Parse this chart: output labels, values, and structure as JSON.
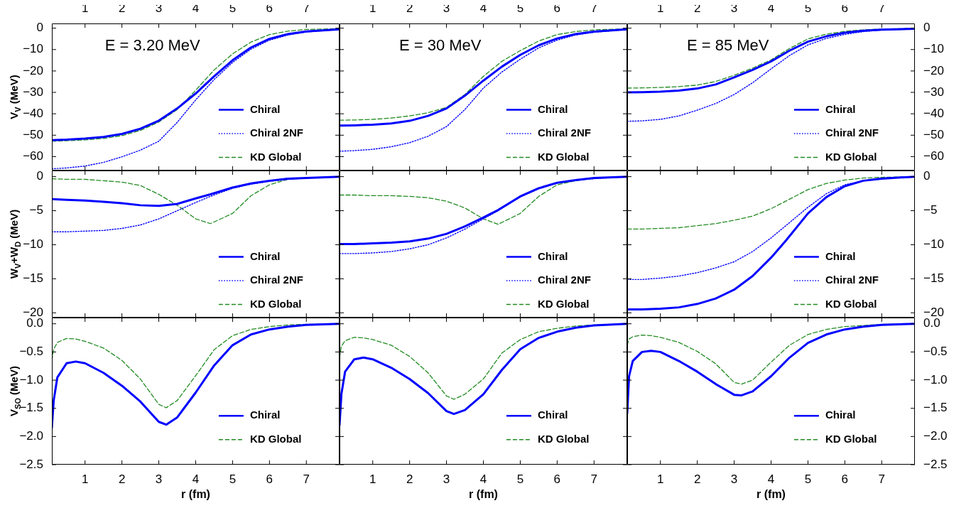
{
  "chart_data": [
    {
      "type": "line",
      "title": "E = 3.20 MeV",
      "ylabel": "V$_{V}$ (MeV)",
      "x": [
        0.1,
        0.5,
        1,
        1.5,
        2,
        2.5,
        3,
        3.5,
        4,
        4.5,
        5,
        5.5,
        6,
        6.5,
        7,
        7.9
      ],
      "xlim": [
        0.1,
        7.9
      ],
      "xticks": [
        1,
        2,
        3,
        4,
        5,
        6,
        7
      ],
      "x2lim": [
        0.1,
        7.9
      ],
      "x2ticks": [
        1,
        2,
        3,
        4,
        5,
        6,
        7
      ],
      "ylim": [
        -66.5,
        2.2
      ],
      "yticks": [
        -60,
        -50,
        -40,
        -30,
        -20,
        -10,
        0
      ],
      "tick_labels": "y",
      "legend": "bottom right",
      "marker": "none",
      "series": [
        {
          "name": "Chiral",
          "color": "#0000ff",
          "line_style": "solid",
          "values": [
            -52.3,
            -52.1,
            -51.6,
            -50.8,
            -49.4,
            -47,
            -43.2,
            -37.5,
            -30.5,
            -22.5,
            -15,
            -9,
            -5,
            -2.8,
            -1.5,
            -0.5
          ]
        },
        {
          "name": "Chiral 2NF",
          "color": "#0000ff",
          "line_style": "dotted",
          "values": [
            -65.7,
            -65.3,
            -64.4,
            -62.7,
            -60.1,
            -57,
            -52.8,
            -44,
            -33.5,
            -24,
            -16,
            -9.8,
            -5.6,
            -3.2,
            -1.8,
            -0.6
          ]
        },
        {
          "name": "KD Global",
          "color": "#228b22",
          "line_style": "dashed",
          "values": [
            -52.8,
            -52.6,
            -52.2,
            -51.5,
            -50.2,
            -47.8,
            -43.8,
            -38,
            -29,
            -19.5,
            -12,
            -6.5,
            -3,
            -1.4,
            -0.6,
            -0.2
          ]
        }
      ]
    },
    {
      "type": "line",
      "title": "E = 30 MeV",
      "x": [
        0.1,
        0.5,
        1,
        1.5,
        2,
        2.5,
        3,
        3.5,
        4,
        4.5,
        5,
        5.5,
        6,
        6.5,
        7,
        7.9
      ],
      "xlim": [
        0.1,
        7.9
      ],
      "xticks": [
        1,
        2,
        3,
        4,
        5,
        6,
        7
      ],
      "x2lim": [
        0.1,
        7.9
      ],
      "x2ticks": [
        1,
        2,
        3,
        4,
        5,
        6,
        7
      ],
      "ylim": [
        -66.5,
        2.2
      ],
      "yticks": [
        -60,
        -50,
        -40,
        -30,
        -20,
        -10,
        0
      ],
      "tick_labels": false,
      "legend": "bottom right",
      "marker": "none",
      "series": [
        {
          "name": "Chiral",
          "color": "#0000ff",
          "line_style": "solid",
          "values": [
            -45.5,
            -45.4,
            -45.1,
            -44.5,
            -43.3,
            -41,
            -37.5,
            -31.5,
            -24.5,
            -18,
            -12.5,
            -8,
            -4.8,
            -2.8,
            -1.6,
            -0.5
          ]
        },
        {
          "name": "Chiral 2NF",
          "color": "#0000ff",
          "line_style": "dotted",
          "values": [
            -57.5,
            -57.2,
            -56.6,
            -55.4,
            -53.5,
            -50.5,
            -46,
            -38,
            -28,
            -20.5,
            -14.5,
            -9.2,
            -5.6,
            -3.2,
            -1.9,
            -0.6
          ]
        },
        {
          "name": "KD Global",
          "color": "#228b22",
          "line_style": "dashed",
          "values": [
            -43,
            -42.9,
            -42.6,
            -42,
            -41,
            -39.5,
            -37,
            -31,
            -22.5,
            -15.5,
            -10.5,
            -6,
            -3,
            -1.6,
            -0.8,
            -0.3
          ]
        }
      ]
    },
    {
      "type": "line",
      "title": "E = 85 MeV",
      "x": [
        0.1,
        0.5,
        1,
        1.5,
        2,
        2.5,
        3,
        3.5,
        4,
        4.5,
        5,
        5.5,
        6,
        6.5,
        7,
        7.9
      ],
      "xlim": [
        0.1,
        7.9
      ],
      "xticks": [
        1,
        2,
        3,
        4,
        5,
        6,
        7
      ],
      "x2lim": [
        0.1,
        7.9
      ],
      "x2ticks": [
        1,
        2,
        3,
        4,
        5,
        6,
        7
      ],
      "ylim": [
        -66.5,
        2.2
      ],
      "yticks": [
        -60,
        -50,
        -40,
        -30,
        -20,
        -10,
        0
      ],
      "tick_labels": "y",
      "legend": "bottom right",
      "marker": "none",
      "series": [
        {
          "name": "Chiral",
          "color": "#0000ff",
          "line_style": "solid",
          "values": [
            -30,
            -29.9,
            -29.7,
            -29.2,
            -28.2,
            -26.3,
            -23,
            -19.5,
            -15.5,
            -10.5,
            -6.3,
            -3.8,
            -2.1,
            -1.2,
            -0.7,
            -0.3
          ]
        },
        {
          "name": "Chiral 2NF",
          "color": "#0000ff",
          "line_style": "dotted",
          "values": [
            -43.5,
            -43.3,
            -42.6,
            -41,
            -38.3,
            -35.2,
            -31,
            -25.5,
            -19,
            -12.8,
            -7.8,
            -4.8,
            -2.9,
            -1.6,
            -0.9,
            -0.3
          ]
        },
        {
          "name": "KD Global",
          "color": "#228b22",
          "line_style": "dashed",
          "values": [
            -28,
            -27.9,
            -27.7,
            -27.3,
            -26.6,
            -24.9,
            -22,
            -18.7,
            -14.8,
            -9.5,
            -5,
            -2.8,
            -1.5,
            -0.8,
            -0.4,
            -0.1
          ]
        }
      ]
    },
    {
      "type": "line",
      "ylabel": "W$_{V}$+W$_{D}$ (MeV)",
      "x": [
        0.1,
        0.5,
        1,
        1.5,
        2,
        2.5,
        3,
        3.5,
        4,
        4.4,
        5,
        5.5,
        6,
        6.5,
        7,
        7.9
      ],
      "xlim": [
        0.1,
        7.9
      ],
      "xticks": [
        1,
        2,
        3,
        4,
        5,
        6,
        7
      ],
      "ylim": [
        -20.7,
        0.9
      ],
      "yticks": [
        -20,
        -15,
        -10,
        -5,
        0
      ],
      "tick_labels": "y",
      "legend": "bottom right",
      "marker": "none",
      "series": [
        {
          "name": "Chiral",
          "color": "#0000ff",
          "line_style": "solid",
          "values": [
            -3.3,
            -3.4,
            -3.5,
            -3.7,
            -3.9,
            -4.2,
            -4.3,
            -4,
            -3.2,
            -2.6,
            -1.6,
            -1,
            -0.6,
            -0.3,
            -0.2,
            0
          ]
        },
        {
          "name": "Chiral 2NF",
          "color": "#0000ff",
          "line_style": "dotted",
          "values": [
            -8.1,
            -8.1,
            -8,
            -7.9,
            -7.6,
            -7.1,
            -6.2,
            -5,
            -3.8,
            -2.9,
            -1.7,
            -1.1,
            -0.7,
            -0.4,
            -0.2,
            0
          ]
        },
        {
          "name": "KD Global",
          "color": "#228b22",
          "line_style": "dashed",
          "values": [
            -0.3,
            -0.4,
            -0.4,
            -0.6,
            -0.8,
            -1.3,
            -2.6,
            -4.2,
            -6.2,
            -6.9,
            -5.4,
            -2.8,
            -1.2,
            -0.4,
            -0.2,
            0
          ]
        }
      ]
    },
    {
      "type": "line",
      "x": [
        0.1,
        0.5,
        1,
        1.5,
        2,
        2.5,
        3,
        3.5,
        4,
        4.4,
        5,
        5.5,
        6,
        6.5,
        7,
        7.9
      ],
      "xlim": [
        0.1,
        7.9
      ],
      "xticks": [
        1,
        2,
        3,
        4,
        5,
        6,
        7
      ],
      "ylim": [
        -20.7,
        0.9
      ],
      "yticks": [
        -20,
        -15,
        -10,
        -5,
        0
      ],
      "tick_labels": false,
      "legend": "bottom right",
      "marker": "none",
      "series": [
        {
          "name": "Chiral",
          "color": "#0000ff",
          "line_style": "solid",
          "values": [
            -9.9,
            -9.9,
            -9.8,
            -9.7,
            -9.5,
            -9.1,
            -8.4,
            -7.3,
            -6,
            -4.9,
            -2.9,
            -1.7,
            -0.9,
            -0.5,
            -0.2,
            0
          ]
        },
        {
          "name": "Chiral 2NF",
          "color": "#0000ff",
          "line_style": "dotted",
          "values": [
            -11.3,
            -11.3,
            -11.2,
            -11,
            -10.6,
            -10,
            -9,
            -7.7,
            -6.2,
            -5,
            -3,
            -1.8,
            -0.9,
            -0.5,
            -0.3,
            0
          ]
        },
        {
          "name": "KD Global",
          "color": "#228b22",
          "line_style": "dashed",
          "values": [
            -2.7,
            -2.7,
            -2.8,
            -2.8,
            -2.9,
            -3.1,
            -3.6,
            -4.6,
            -6.2,
            -7,
            -5.4,
            -2.9,
            -1.2,
            -0.6,
            -0.2,
            0
          ]
        }
      ]
    },
    {
      "type": "line",
      "x": [
        0.1,
        0.5,
        1,
        1.5,
        2,
        2.5,
        3,
        3.5,
        4,
        4.4,
        5,
        5.5,
        6,
        6.5,
        7,
        7.9
      ],
      "xlim": [
        0.1,
        7.9
      ],
      "xticks": [
        1,
        2,
        3,
        4,
        5,
        6,
        7
      ],
      "ylim": [
        -20.7,
        0.9
      ],
      "yticks": [
        -20,
        -15,
        -10,
        -5,
        0
      ],
      "tick_labels": "y",
      "legend": "bottom right",
      "marker": "none",
      "series": [
        {
          "name": "Chiral",
          "color": "#0000ff",
          "line_style": "solid",
          "values": [
            -19.5,
            -19.5,
            -19.4,
            -19.2,
            -18.7,
            -17.9,
            -16.6,
            -14.6,
            -11.9,
            -9.4,
            -5.4,
            -3,
            -1.4,
            -0.6,
            -0.3,
            0
          ]
        },
        {
          "name": "Chiral 2NF",
          "color": "#0000ff",
          "line_style": "dotted",
          "values": [
            -15.1,
            -15.1,
            -14.9,
            -14.6,
            -14.1,
            -13.4,
            -12.5,
            -11,
            -9,
            -7.2,
            -4.5,
            -2.5,
            -1.2,
            -0.6,
            -0.2,
            0
          ]
        },
        {
          "name": "KD Global",
          "color": "#228b22",
          "line_style": "dashed",
          "values": [
            -7.7,
            -7.7,
            -7.6,
            -7.5,
            -7.2,
            -6.9,
            -6.4,
            -5.8,
            -4.7,
            -3.6,
            -1.9,
            -1,
            -0.5,
            -0.2,
            -0.1,
            0
          ]
        }
      ]
    },
    {
      "type": "line",
      "ylabel": "V$_{SO}$ (MeV)",
      "xlabel": "r (fm)",
      "x": [
        0.1,
        0.15,
        0.25,
        0.5,
        0.75,
        1,
        1.5,
        2,
        2.5,
        3,
        3.2,
        3.5,
        4,
        4.5,
        5,
        5.5,
        6,
        6.5,
        7,
        7.9
      ],
      "xlim": [
        0.1,
        7.9
      ],
      "xticks": [
        1,
        2,
        3,
        4,
        5,
        6,
        7
      ],
      "ylim": [
        -2.5,
        0.11
      ],
      "yticks": [
        -2.5,
        {
          "value": -2,
          "label": "−2.0"
        },
        -1.5,
        {
          "value": -1,
          "label": "−1.0"
        },
        -0.5,
        {
          "value": 0,
          "label": "0.0"
        }
      ],
      "legend": "bottom right",
      "marker": "none",
      "series": [
        {
          "name": "Chiral",
          "color": "#0000ff",
          "line_style": "solid",
          "values": [
            -1.85,
            -1.36,
            -0.95,
            -0.7,
            -0.67,
            -0.7,
            -0.87,
            -1.1,
            -1.38,
            -1.74,
            -1.79,
            -1.66,
            -1.22,
            -0.74,
            -0.38,
            -0.19,
            -0.1,
            -0.05,
            -0.02,
            0
          ]
        },
        {
          "name": "KD Global",
          "color": "#228b22",
          "line_style": "dashed",
          "values": [
            -0.65,
            -0.45,
            -0.33,
            -0.26,
            -0.27,
            -0.31,
            -0.43,
            -0.65,
            -0.98,
            -1.43,
            -1.49,
            -1.36,
            -0.92,
            -0.46,
            -0.21,
            -0.1,
            -0.05,
            -0.02,
            -0.01,
            0
          ]
        }
      ]
    },
    {
      "type": "line",
      "xlabel": "r (fm)",
      "x": [
        0.1,
        0.15,
        0.25,
        0.5,
        0.75,
        1,
        1.5,
        2,
        2.5,
        3,
        3.2,
        3.5,
        4,
        4.5,
        5,
        5.5,
        6,
        6.5,
        7,
        7.9
      ],
      "xlim": [
        0.1,
        7.9
      ],
      "xticks": [
        1,
        2,
        3,
        4,
        5,
        6,
        7
      ],
      "ylim": [
        -2.5,
        0.11
      ],
      "yticks": [
        -2.5,
        -2,
        -1.5,
        -1,
        -0.5,
        0
      ],
      "tick_labels": "x",
      "legend": "bottom right",
      "marker": "none",
      "series": [
        {
          "name": "Chiral",
          "color": "#0000ff",
          "line_style": "solid",
          "values": [
            -1.8,
            -1.25,
            -0.85,
            -0.63,
            -0.6,
            -0.63,
            -0.78,
            -0.98,
            -1.23,
            -1.55,
            -1.6,
            -1.53,
            -1.25,
            -0.82,
            -0.45,
            -0.25,
            -0.14,
            -0.07,
            -0.03,
            0
          ]
        },
        {
          "name": "KD Global",
          "color": "#228b22",
          "line_style": "dashed",
          "values": [
            -0.6,
            -0.4,
            -0.3,
            -0.24,
            -0.25,
            -0.28,
            -0.38,
            -0.58,
            -0.87,
            -1.28,
            -1.34,
            -1.25,
            -0.98,
            -0.52,
            -0.28,
            -0.14,
            -0.08,
            -0.04,
            -0.02,
            0
          ]
        }
      ]
    },
    {
      "type": "line",
      "xlabel": "r (fm)",
      "x": [
        0.1,
        0.15,
        0.25,
        0.5,
        0.75,
        1,
        1.5,
        2,
        2.5,
        3,
        3.2,
        3.5,
        4,
        4.5,
        5,
        5.5,
        6,
        6.5,
        7,
        7.9
      ],
      "xlim": [
        0.1,
        7.9
      ],
      "xticks": [
        1,
        2,
        3,
        4,
        5,
        6,
        7
      ],
      "ylim": [
        -2.5,
        0.11
      ],
      "yticks": [
        -2.5,
        {
          "value": -2,
          "label": "−2.0"
        },
        -1.5,
        {
          "value": -1,
          "label": "−1.0"
        },
        -0.5,
        {
          "value": 0,
          "label": "0.0"
        }
      ],
      "legend": "bottom right",
      "marker": "none",
      "series": [
        {
          "name": "Chiral",
          "color": "#0000ff",
          "line_style": "solid",
          "values": [
            -1.59,
            -0.93,
            -0.66,
            -0.5,
            -0.48,
            -0.5,
            -0.66,
            -0.85,
            -1.07,
            -1.26,
            -1.27,
            -1.2,
            -0.93,
            -0.6,
            -0.34,
            -0.19,
            -0.1,
            -0.05,
            -0.02,
            0
          ]
        },
        {
          "name": "KD Global",
          "color": "#228b22",
          "line_style": "dashed",
          "values": [
            -0.38,
            -0.27,
            -0.23,
            -0.2,
            -0.21,
            -0.24,
            -0.33,
            -0.49,
            -0.71,
            -1.04,
            -1.07,
            -1,
            -0.68,
            -0.38,
            -0.19,
            -0.1,
            -0.05,
            -0.03,
            -0.01,
            0
          ]
        }
      ]
    }
  ]
}
